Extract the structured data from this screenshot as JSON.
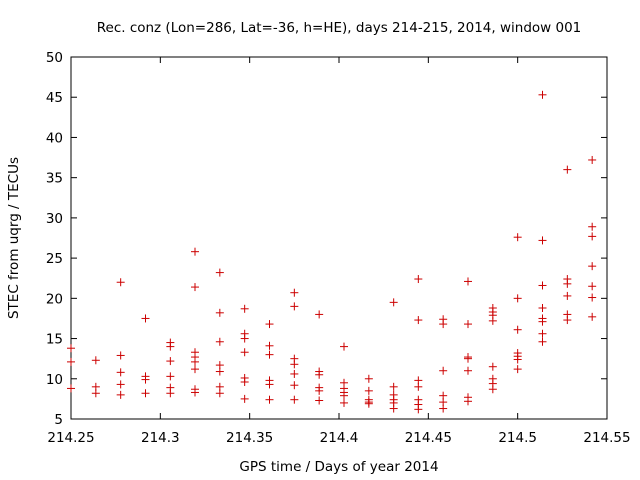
{
  "chart_data": {
    "type": "scatter",
    "title": "Rec. conz (Lon=286, Lat=-36, h=HE), days 214-215, 2014, window 001",
    "xlabel": "GPS time / Days of year 2014",
    "ylabel": "STEC from uqrg / TECUs",
    "xlim": [
      214.25,
      214.55
    ],
    "ylim": [
      5,
      50
    ],
    "x_ticks": [
      "214.25",
      "214.3",
      "214.35",
      "214.4",
      "214.45",
      "214.5",
      "214.55"
    ],
    "y_ticks": [
      "5",
      "10",
      "15",
      "20",
      "25",
      "30",
      "35",
      "40",
      "45",
      "50"
    ],
    "grid": false,
    "legend": "none",
    "marker": "+",
    "color": "#cc0000",
    "points": [
      [
        214.25,
        13.8
      ],
      [
        214.25,
        12.1
      ],
      [
        214.25,
        8.8
      ],
      [
        214.2639,
        12.3
      ],
      [
        214.2639,
        9.0
      ],
      [
        214.2639,
        8.2
      ],
      [
        214.2778,
        22.0
      ],
      [
        214.2778,
        12.9
      ],
      [
        214.2778,
        10.8
      ],
      [
        214.2778,
        9.3
      ],
      [
        214.2778,
        8.0
      ],
      [
        214.2917,
        17.5
      ],
      [
        214.2917,
        10.3
      ],
      [
        214.2917,
        9.9
      ],
      [
        214.2917,
        8.2
      ],
      [
        214.3056,
        14.5
      ],
      [
        214.3056,
        14.0
      ],
      [
        214.3056,
        12.2
      ],
      [
        214.3056,
        10.3
      ],
      [
        214.3056,
        8.9
      ],
      [
        214.3056,
        8.2
      ],
      [
        214.3194,
        25.8
      ],
      [
        214.3194,
        21.4
      ],
      [
        214.3194,
        13.3
      ],
      [
        214.3194,
        12.7
      ],
      [
        214.3194,
        12.1
      ],
      [
        214.3194,
        11.2
      ],
      [
        214.3194,
        8.7
      ],
      [
        214.3194,
        8.3
      ],
      [
        214.3333,
        23.2
      ],
      [
        214.3333,
        18.2
      ],
      [
        214.3333,
        14.6
      ],
      [
        214.3333,
        11.7
      ],
      [
        214.3333,
        10.9
      ],
      [
        214.3333,
        9.0
      ],
      [
        214.3333,
        8.2
      ],
      [
        214.3472,
        18.7
      ],
      [
        214.3472,
        15.6
      ],
      [
        214.3472,
        15.0
      ],
      [
        214.3472,
        13.3
      ],
      [
        214.3472,
        10.1
      ],
      [
        214.3472,
        9.6
      ],
      [
        214.3472,
        7.5
      ],
      [
        214.3611,
        16.8
      ],
      [
        214.3611,
        14.1
      ],
      [
        214.3611,
        13.0
      ],
      [
        214.3611,
        9.8
      ],
      [
        214.3611,
        9.3
      ],
      [
        214.3611,
        7.4
      ],
      [
        214.375,
        20.7
      ],
      [
        214.375,
        19.0
      ],
      [
        214.375,
        12.5
      ],
      [
        214.375,
        11.8
      ],
      [
        214.375,
        10.6
      ],
      [
        214.375,
        9.2
      ],
      [
        214.375,
        7.4
      ],
      [
        214.3889,
        18.0
      ],
      [
        214.3889,
        10.9
      ],
      [
        214.3889,
        10.5
      ],
      [
        214.3889,
        8.9
      ],
      [
        214.3889,
        8.5
      ],
      [
        214.3889,
        7.3
      ],
      [
        214.4028,
        14.0
      ],
      [
        214.4028,
        9.5
      ],
      [
        214.4028,
        8.8
      ],
      [
        214.4028,
        8.3
      ],
      [
        214.4028,
        7.9
      ],
      [
        214.4028,
        7.0
      ],
      [
        214.4167,
        10.0
      ],
      [
        214.4167,
        8.5
      ],
      [
        214.4167,
        7.4
      ],
      [
        214.4167,
        7.1
      ],
      [
        214.4167,
        6.9
      ],
      [
        214.4306,
        19.5
      ],
      [
        214.4306,
        9.0
      ],
      [
        214.4306,
        8.0
      ],
      [
        214.4306,
        7.4
      ],
      [
        214.4306,
        7.0
      ],
      [
        214.4306,
        6.3
      ],
      [
        214.4444,
        22.4
      ],
      [
        214.4444,
        17.3
      ],
      [
        214.4444,
        9.8
      ],
      [
        214.4444,
        9.0
      ],
      [
        214.4444,
        7.4
      ],
      [
        214.4444,
        6.8
      ],
      [
        214.4444,
        6.2
      ],
      [
        214.4583,
        17.4
      ],
      [
        214.4583,
        16.8
      ],
      [
        214.4583,
        11.0
      ],
      [
        214.4583,
        7.9
      ],
      [
        214.4583,
        7.1
      ],
      [
        214.4583,
        6.3
      ],
      [
        214.4722,
        22.1
      ],
      [
        214.4722,
        16.8
      ],
      [
        214.4722,
        12.7
      ],
      [
        214.4722,
        12.5
      ],
      [
        214.4722,
        11.0
      ],
      [
        214.4722,
        7.7
      ],
      [
        214.4722,
        7.2
      ],
      [
        214.4861,
        18.8
      ],
      [
        214.4861,
        18.3
      ],
      [
        214.4861,
        17.9
      ],
      [
        214.4861,
        17.2
      ],
      [
        214.4861,
        11.5
      ],
      [
        214.4861,
        10.0
      ],
      [
        214.4861,
        9.4
      ],
      [
        214.4861,
        8.7
      ],
      [
        214.5,
        27.6
      ],
      [
        214.5,
        20.0
      ],
      [
        214.5,
        16.1
      ],
      [
        214.5,
        13.2
      ],
      [
        214.5,
        12.8
      ],
      [
        214.5,
        12.4
      ],
      [
        214.5,
        11.2
      ],
      [
        214.5139,
        45.3
      ],
      [
        214.5139,
        27.2
      ],
      [
        214.5139,
        21.6
      ],
      [
        214.5139,
        18.8
      ],
      [
        214.5139,
        17.5
      ],
      [
        214.5139,
        17.1
      ],
      [
        214.5139,
        15.6
      ],
      [
        214.5139,
        14.6
      ],
      [
        214.5278,
        36.0
      ],
      [
        214.5278,
        22.4
      ],
      [
        214.5278,
        21.8
      ],
      [
        214.5278,
        20.3
      ],
      [
        214.5278,
        18.0
      ],
      [
        214.5278,
        17.3
      ],
      [
        214.5417,
        37.2
      ],
      [
        214.5417,
        28.9
      ],
      [
        214.5417,
        27.7
      ],
      [
        214.5417,
        24.0
      ],
      [
        214.5417,
        21.5
      ],
      [
        214.5417,
        20.1
      ],
      [
        214.5417,
        17.7
      ]
    ]
  }
}
